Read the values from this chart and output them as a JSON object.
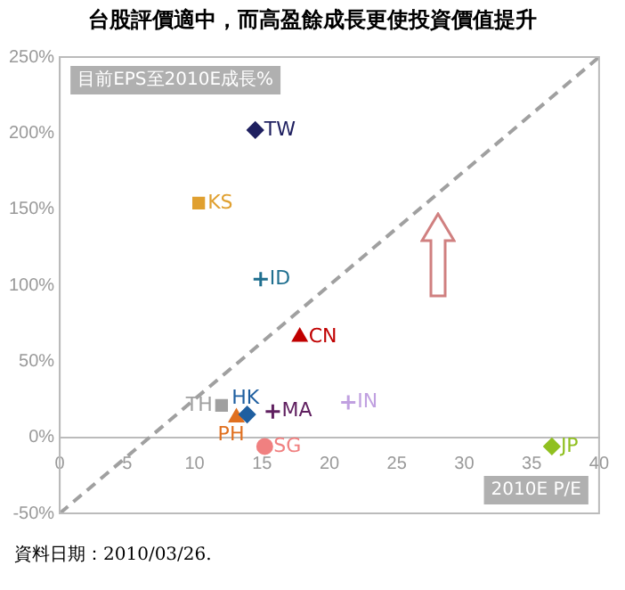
{
  "chart_data": {
    "type": "scatter",
    "title": "台股評價適中，而高盈餘成長更使投資價值提升",
    "xlabel": "2010E P/E",
    "ylabel": "目前EPS至2010E成長%",
    "xlim": [
      0,
      40
    ],
    "xticks": [
      0,
      5,
      10,
      15,
      20,
      25,
      30,
      35,
      40
    ],
    "ylim": [
      -50,
      250
    ],
    "yticks": [
      {
        "value": -50,
        "label": "-50%"
      },
      {
        "value": 0,
        "label": "0%"
      },
      {
        "value": 50,
        "label": "50%"
      },
      {
        "value": 100,
        "label": "100%"
      },
      {
        "value": 150,
        "label": "150%"
      },
      {
        "value": 200,
        "label": "200%"
      },
      {
        "value": 250,
        "label": "250%"
      }
    ],
    "grid": false,
    "legend": false,
    "annotations": [
      "資料日期：2010/03/26."
    ],
    "series": [
      {
        "name": "TW",
        "color": "#1f2060",
        "marker": "diamond",
        "x": [
          14.5
        ],
        "values": [
          202
        ]
      },
      {
        "name": "KS",
        "color": "#e0a030",
        "marker": "square",
        "x": [
          10.3
        ],
        "values": [
          154
        ]
      },
      {
        "name": "ID",
        "color": "#1f6f8f",
        "marker": "cross",
        "x": [
          14.9
        ],
        "values": [
          104
        ]
      },
      {
        "name": "CN",
        "color": "#c00000",
        "marker": "triangle",
        "x": [
          17.8
        ],
        "values": [
          66
        ]
      },
      {
        "name": "TH",
        "color": "#a0a0a0",
        "marker": "square",
        "x": [
          12.0
        ],
        "values": [
          21
        ]
      },
      {
        "name": "HK",
        "color": "#1f5fa0",
        "marker": "diamond",
        "x": [
          13.9
        ],
        "values": [
          15
        ]
      },
      {
        "name": "PH",
        "color": "#e07020",
        "marker": "triangle",
        "x": [
          13.1
        ],
        "values": [
          13
        ]
      },
      {
        "name": "MA",
        "color": "#602060",
        "marker": "cross",
        "x": [
          15.8
        ],
        "values": [
          17
        ]
      },
      {
        "name": "IN",
        "color": "#c0a0e0",
        "marker": "cross",
        "x": [
          21.4
        ],
        "values": [
          23
        ]
      },
      {
        "name": "SG",
        "color": "#f08080",
        "marker": "circle",
        "x": [
          15.2
        ],
        "values": [
          -6
        ]
      },
      {
        "name": "JP",
        "color": "#90c020",
        "marker": "diamond",
        "x": [
          36.5
        ],
        "values": [
          -6
        ]
      },
      {
        "type": "line",
        "color": "#a0a0a0",
        "line_style": "dashed",
        "marker": "none",
        "x": [
          0,
          40
        ],
        "values": [
          -50,
          250
        ]
      }
    ]
  }
}
